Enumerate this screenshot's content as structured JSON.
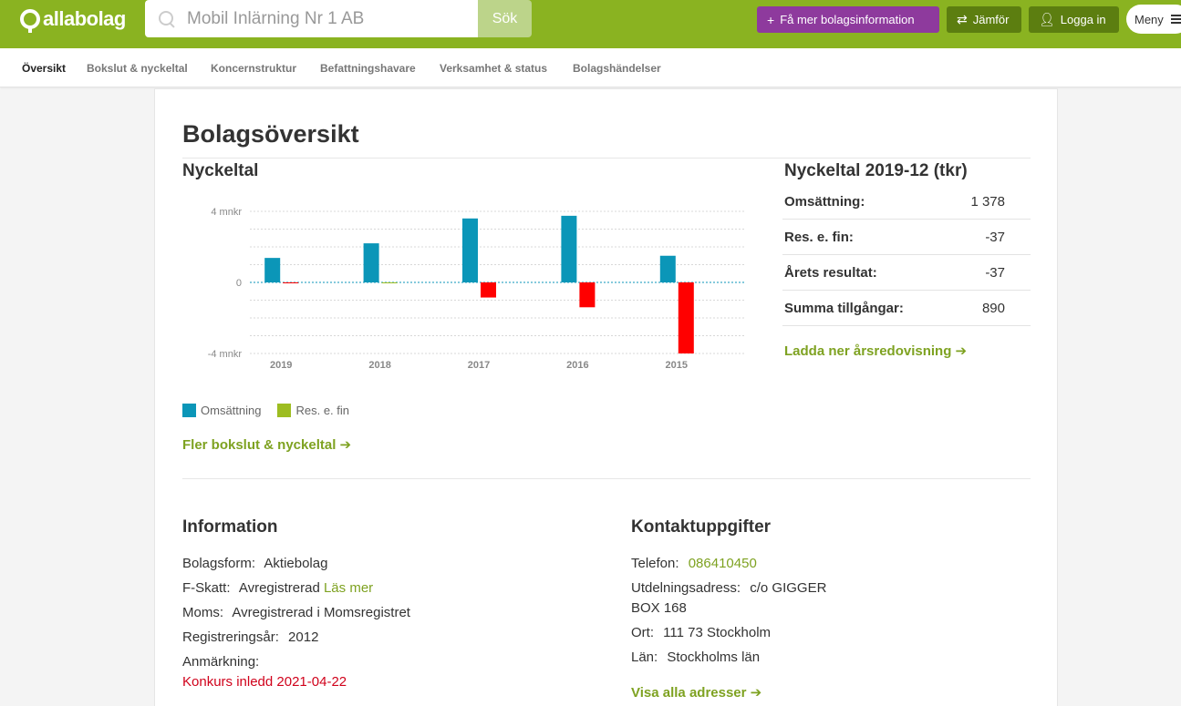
{
  "header": {
    "logo_text": "allabolag",
    "search_placeholder": "Mobil Inlärning Nr 1 AB",
    "search_button": "Sök",
    "info_button": "Få mer bolagsinformation",
    "compare_button": "Jämför",
    "login_button": "Logga in",
    "menu_button": "Meny",
    "colors": {
      "topbar": "#8ab321",
      "info": "#8e3a9d",
      "dark_green": "#5c7e10"
    }
  },
  "subnav": {
    "items": [
      "Översikt",
      "Bokslut & nyckeltal",
      "Koncernstruktur",
      "Befattningshavare",
      "Verksamhet & status",
      "Bolagshändelser"
    ],
    "active_index": 0
  },
  "page": {
    "title": "Bolagsöversikt",
    "chart_heading": "Nyckeltal",
    "more_link": "Fler bokslut & nyckeltal ➔"
  },
  "chart_data": {
    "type": "bar",
    "categories": [
      "2019",
      "2018",
      "2017",
      "2016",
      "2015"
    ],
    "series": [
      {
        "name": "Omsättning",
        "color": "#0b96b8",
        "values": [
          1.378,
          2.2,
          3.6,
          3.75,
          1.5
        ]
      },
      {
        "name": "Res. e. fin",
        "color": "#9dbd21",
        "values": [
          -0.037,
          0,
          -0.85,
          -1.4,
          -4.0
        ]
      }
    ],
    "negative_color": "#ff0000",
    "ylim": [
      -4,
      4
    ],
    "yticks": [
      {
        "value": 4,
        "label": "4 mnkr"
      },
      {
        "value": 0,
        "label": "0"
      },
      {
        "value": -4,
        "label": "-4 mnkr"
      }
    ],
    "grid": true
  },
  "key_figures": {
    "heading": "Nyckeltal 2019-12 (tkr)",
    "rows": [
      {
        "label": "Omsättning:",
        "value": "1 378"
      },
      {
        "label": "Res. e. fin:",
        "value": "-37"
      },
      {
        "label": "Årets resultat:",
        "value": "-37"
      },
      {
        "label": "Summa tillgångar:",
        "value": "890"
      }
    ],
    "download_link": "Ladda ner årsredovisning ➔"
  },
  "information": {
    "heading": "Information",
    "bolagsform_label": "Bolagsform:",
    "bolagsform_value": "Aktiebolag",
    "fskatt_label": "F-Skatt:",
    "fskatt_value": "Avregistrerad",
    "fskatt_link": "Läs mer",
    "moms_label": "Moms:",
    "moms_value": "Avregistrerad i Momsregistret",
    "regyear_label": "Registreringsår:",
    "regyear_value": "2012",
    "remark_label": "Anmärkning:",
    "remark_value": "Konkurs inledd 2021-04-22"
  },
  "contact": {
    "heading": "Kontaktuppgifter",
    "phone_label": "Telefon:",
    "phone_value": "086410450",
    "address_label": "Utdelningsadress:",
    "address_line1": "c/o GIGGER",
    "address_line2": "BOX 168",
    "city_label": "Ort:",
    "city_value": "111 73 Stockholm",
    "county_label": "Län:",
    "county_value": "Stockholms län",
    "all_addresses_link": "Visa alla adresser ➔"
  }
}
